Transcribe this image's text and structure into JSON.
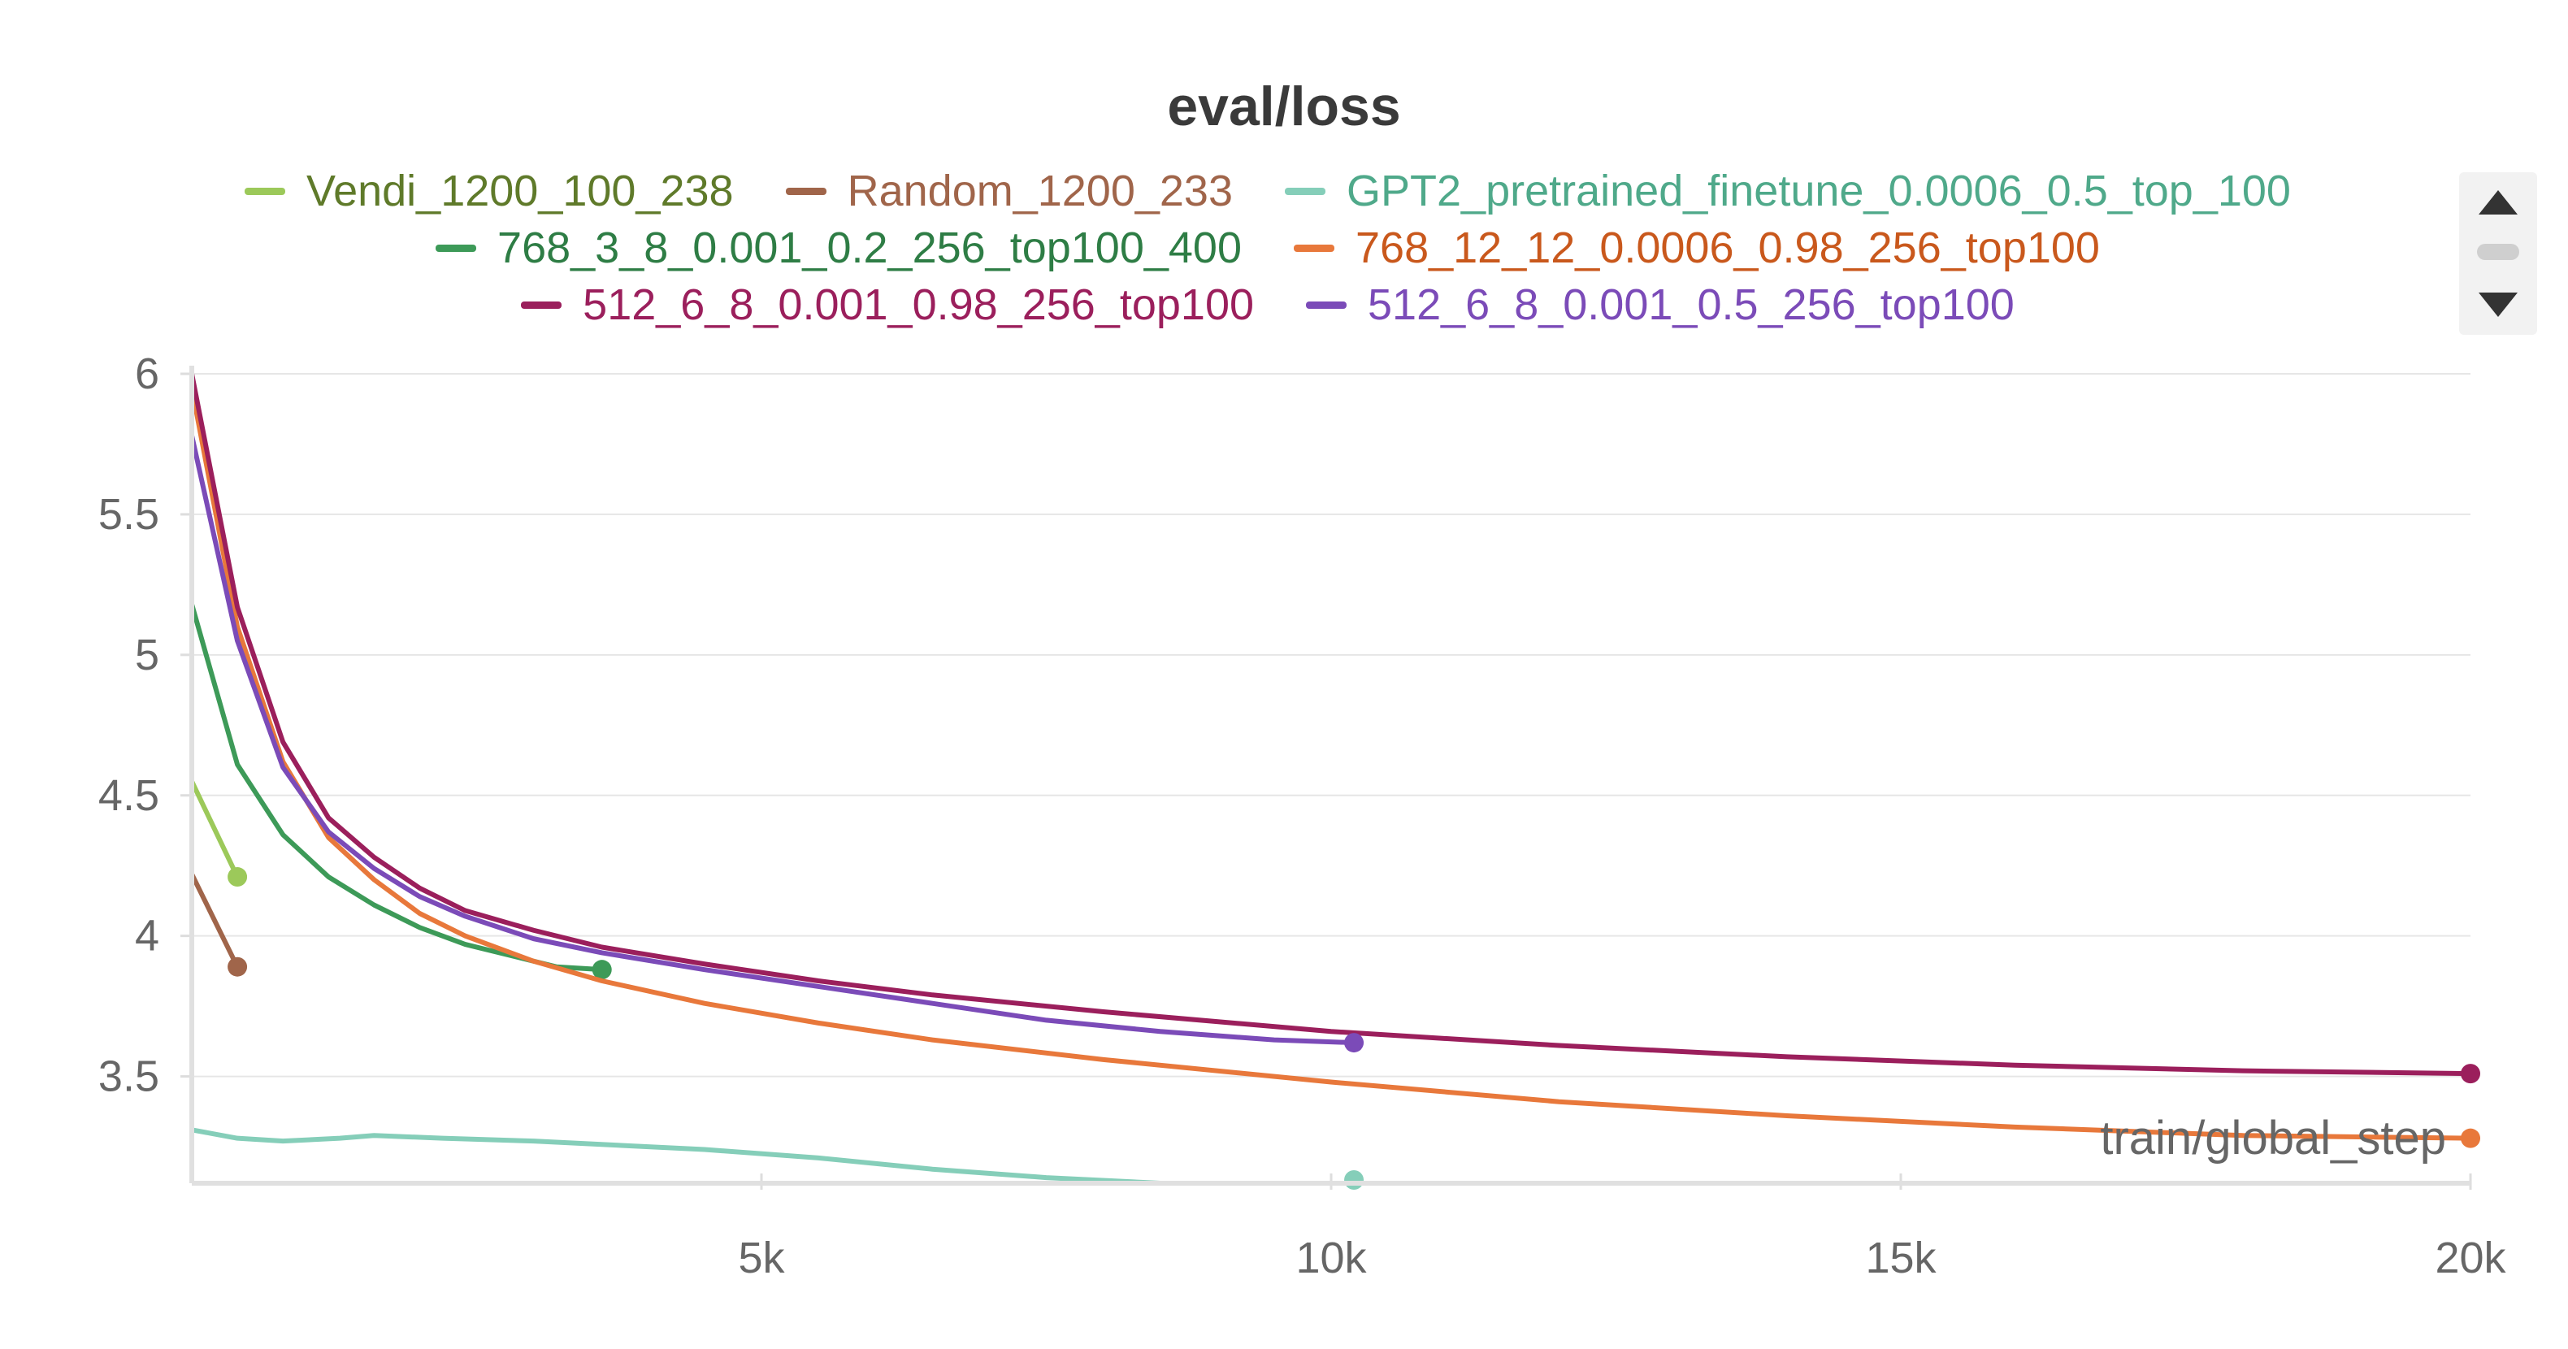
{
  "chart_data": {
    "type": "line",
    "title": "eval/loss",
    "xlabel": "train/global_step",
    "ylabel": "",
    "xlim": [
      0,
      20000
    ],
    "ylim": [
      3.12,
      6
    ],
    "x_ticks": [
      5000,
      10000,
      15000,
      20000
    ],
    "x_tick_labels": [
      "5k",
      "10k",
      "15k",
      "20k"
    ],
    "y_ticks": [
      3.5,
      4,
      4.5,
      5,
      5.5,
      6
    ],
    "y_tick_labels": [
      "3.5",
      "4",
      "4.5",
      "5",
      "5.5",
      "6"
    ],
    "grid": true,
    "legend_position": "top",
    "series": [
      {
        "name": "Vendi_1200_100_238",
        "color": "#9cc95a",
        "label_color": "#5f7a2a",
        "x": [
          0,
          400
        ],
        "y": [
          4.55,
          4.21
        ]
      },
      {
        "name": "Random_1200_233",
        "color": "#a0654a",
        "label_color": "#a0654a",
        "x": [
          0,
          400
        ],
        "y": [
          4.22,
          3.89
        ]
      },
      {
        "name": "GPT2_pretrained_finetune_0.0006_0.5_top_100",
        "color": "#85ceb9",
        "label_color": "#4fa98a",
        "x": [
          0,
          400,
          800,
          1300,
          1600,
          2200,
          3000,
          4500,
          5500,
          6500,
          7500,
          8500,
          9200,
          10200
        ],
        "y": [
          3.31,
          3.28,
          3.27,
          3.28,
          3.29,
          3.28,
          3.27,
          3.24,
          3.21,
          3.17,
          3.14,
          3.12,
          3.11,
          3.11
        ]
      },
      {
        "name": "768_3_8_0.001_0.2_256_top100_400",
        "color": "#3d9a58",
        "label_color": "#2e7d45",
        "x": [
          0,
          400,
          800,
          1200,
          1600,
          2000,
          2400,
          2800,
          3200,
          3600
        ],
        "y": [
          5.18,
          4.61,
          4.36,
          4.21,
          4.11,
          4.03,
          3.97,
          3.93,
          3.89,
          3.88
        ]
      },
      {
        "name": "768_12_12_0.0006_0.98_256_top100",
        "color": "#e8783b",
        "label_color": "#c9581c",
        "x": [
          0,
          400,
          800,
          1200,
          1600,
          2000,
          2400,
          3000,
          3600,
          4500,
          5500,
          6500,
          8000,
          10000,
          12000,
          14000,
          16000,
          18000,
          20000
        ],
        "y": [
          5.95,
          5.1,
          4.62,
          4.35,
          4.2,
          4.08,
          4.0,
          3.91,
          3.84,
          3.76,
          3.69,
          3.63,
          3.56,
          3.48,
          3.41,
          3.36,
          3.32,
          3.29,
          3.28
        ]
      },
      {
        "name": "512_6_8_0.001_0.98_256_top100",
        "color": "#9b1f5c",
        "label_color": "#9b1f5c",
        "x": [
          0,
          400,
          800,
          1200,
          1600,
          2000,
          2400,
          3000,
          3600,
          4500,
          5500,
          6500,
          8000,
          10000,
          12000,
          14000,
          16000,
          18000,
          20000
        ],
        "y": [
          6.0,
          5.17,
          4.69,
          4.42,
          4.28,
          4.17,
          4.09,
          4.02,
          3.96,
          3.9,
          3.84,
          3.79,
          3.73,
          3.66,
          3.61,
          3.57,
          3.54,
          3.52,
          3.51
        ]
      },
      {
        "name": "512_6_8_0.001_0.5_256_top100",
        "color": "#7b4bb8",
        "label_color": "#7b4bb8",
        "x": [
          0,
          400,
          800,
          1200,
          1600,
          2000,
          2400,
          3000,
          3600,
          4500,
          5500,
          6500,
          7500,
          8500,
          9500,
          10200
        ],
        "y": [
          5.78,
          5.05,
          4.6,
          4.37,
          4.24,
          4.14,
          4.07,
          3.99,
          3.94,
          3.88,
          3.82,
          3.76,
          3.7,
          3.66,
          3.63,
          3.62
        ]
      }
    ]
  },
  "legend": {
    "pager_up_icon": "triangle-up-icon",
    "pager_down_icon": "triangle-down-icon"
  }
}
